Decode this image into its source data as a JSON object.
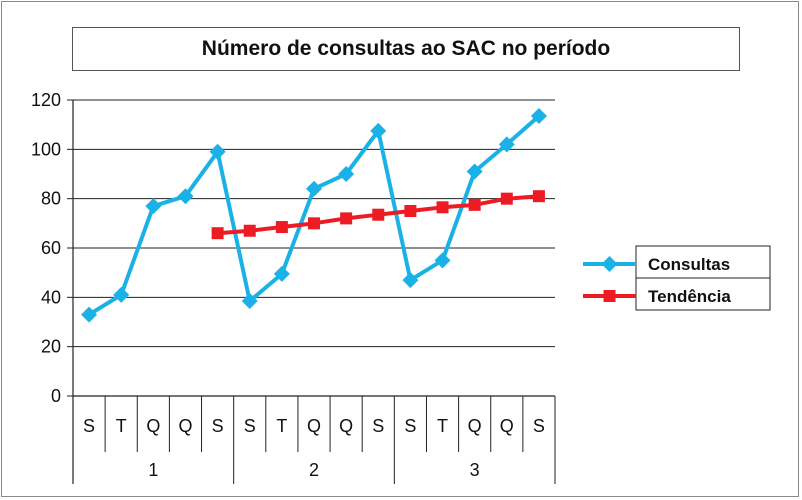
{
  "chart_data": {
    "type": "line",
    "title": "Número de consultas ao SAC no período",
    "ylim": [
      0,
      120
    ],
    "yticks": [
      0,
      20,
      40,
      60,
      80,
      100,
      120
    ],
    "categories": [
      "S",
      "T",
      "Q",
      "Q",
      "S",
      "S",
      "T",
      "Q",
      "Q",
      "S",
      "S",
      "T",
      "Q",
      "Q",
      "S"
    ],
    "groups": [
      {
        "label": "1",
        "start": 0,
        "end": 4
      },
      {
        "label": "2",
        "start": 5,
        "end": 9
      },
      {
        "label": "3",
        "start": 10,
        "end": 14
      }
    ],
    "grid": true,
    "legend_position": "right",
    "series": [
      {
        "name": "Consultas",
        "color": "#1ab2e6",
        "marker": "diamond",
        "values": [
          33,
          41,
          77,
          81,
          99,
          38.5,
          49.5,
          84,
          90,
          107.5,
          47,
          55,
          91,
          102,
          113.5
        ]
      },
      {
        "name": "Tendência",
        "color": "#ed1c24",
        "marker": "square",
        "values": [
          null,
          null,
          null,
          null,
          66,
          67,
          68.5,
          70,
          72,
          73.5,
          75,
          76.5,
          77.5,
          80,
          81
        ]
      }
    ]
  }
}
